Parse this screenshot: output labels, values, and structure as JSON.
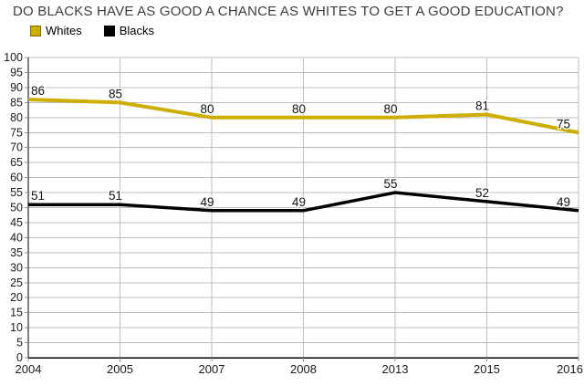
{
  "chart_data": {
    "type": "line",
    "title": "DO BLACKS HAVE AS GOOD A CHANCE AS WHITES TO GET A GOOD EDUCATION?",
    "categories": [
      "2004",
      "2005",
      "2007",
      "2008",
      "2013",
      "2015",
      "2016"
    ],
    "series": [
      {
        "name": "Whites",
        "color": "#CCAD00",
        "swatch_border": "#7F6B00",
        "values": [
          86,
          85,
          80,
          80,
          80,
          81,
          75
        ]
      },
      {
        "name": "Blacks",
        "color": "#000000",
        "swatch_border": "#000000",
        "values": [
          51,
          51,
          49,
          49,
          55,
          52,
          49
        ]
      }
    ],
    "xlabel": "",
    "ylabel": "",
    "ylim": [
      0,
      100
    ],
    "ytick_step": 5,
    "grid": true,
    "data_labels": true,
    "legend_position": "top-left",
    "styles": {
      "grid_color": "#bdbdbd",
      "axis_color": "#000000",
      "tick_color": "#8c8c8c",
      "tick_label_color": "#1a1a1a",
      "data_label_color": "#111111",
      "title_color": "#3d3d3d",
      "background": "#ffffff"
    }
  }
}
